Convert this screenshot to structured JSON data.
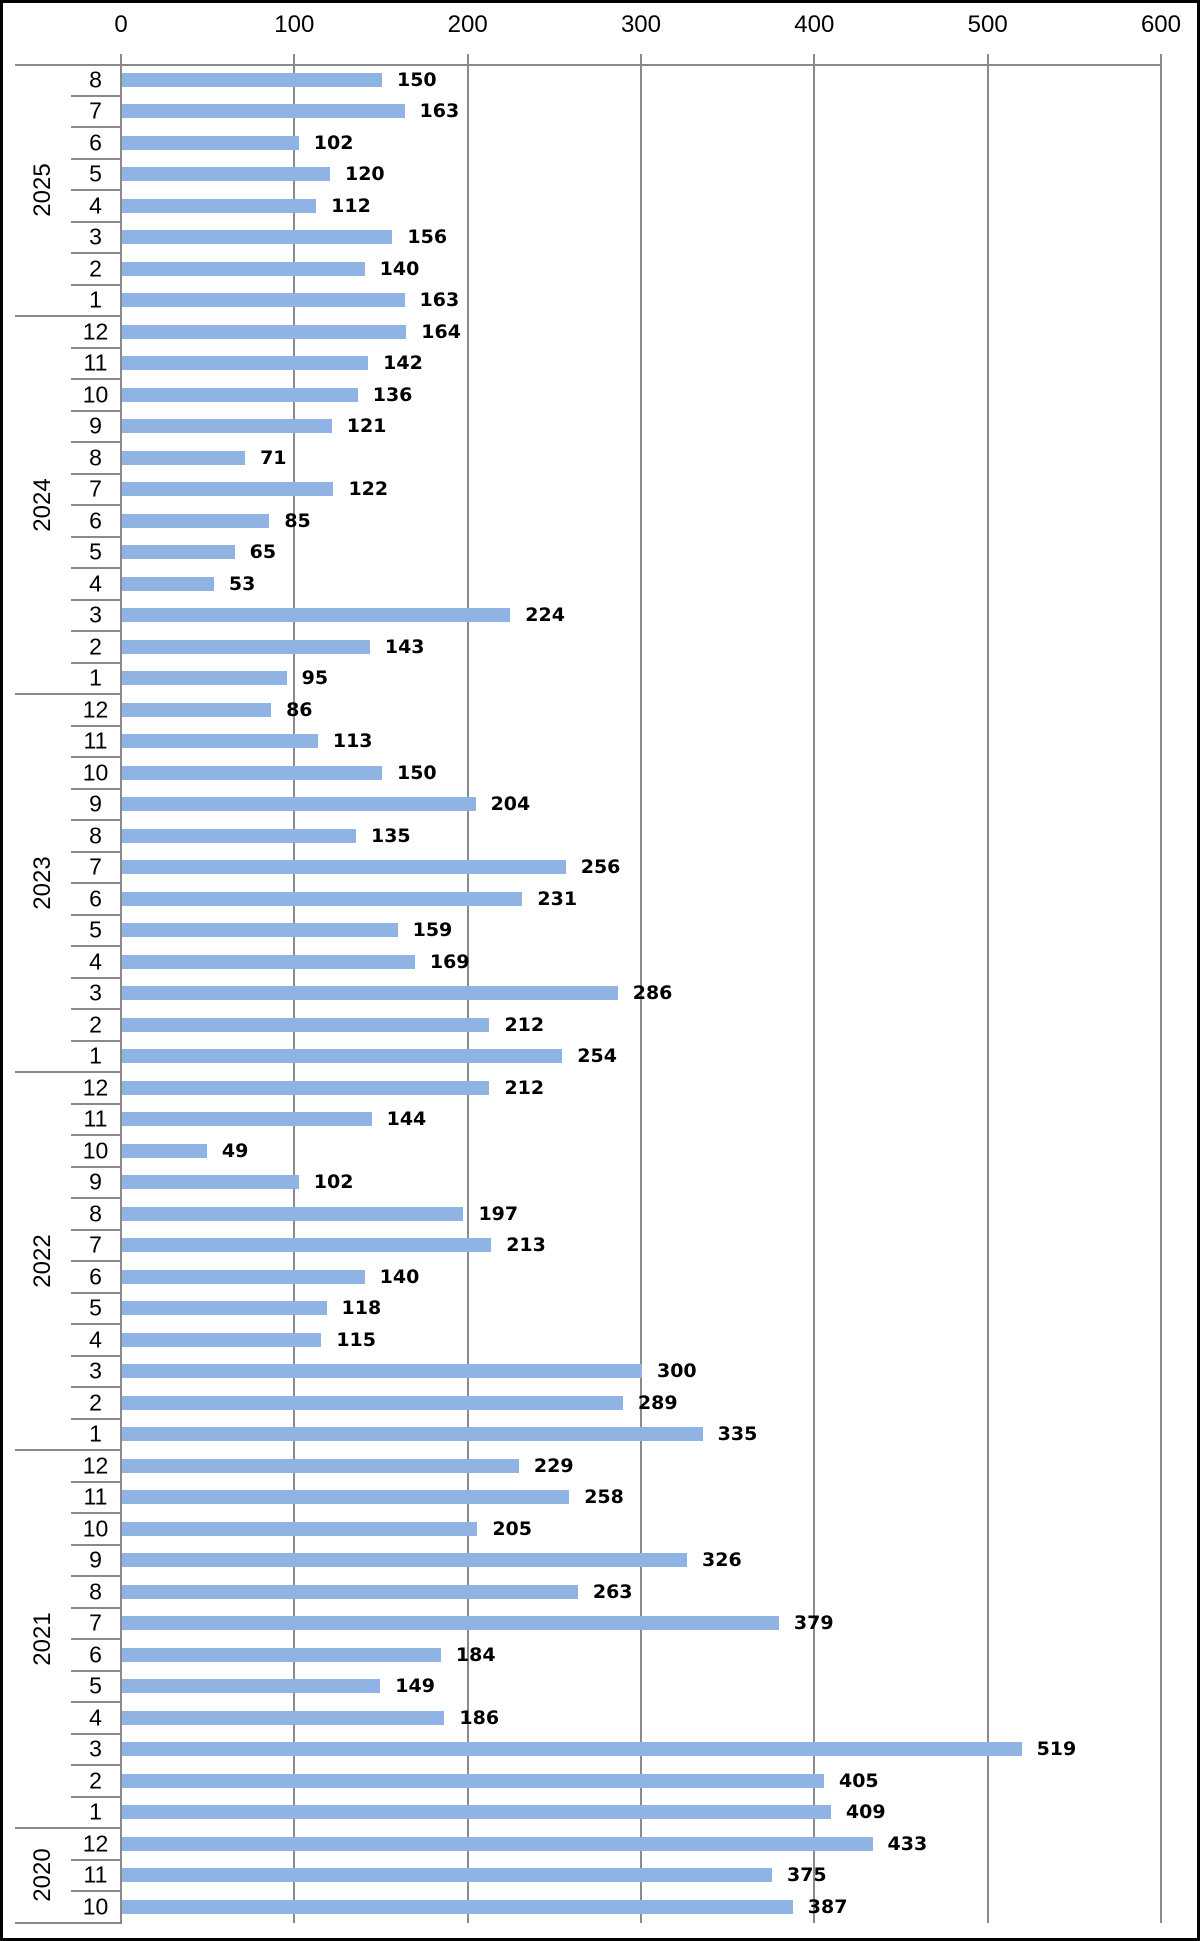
{
  "chart_data": {
    "type": "bar",
    "orientation": "horizontal",
    "title": "",
    "value_axis": {
      "position": "top",
      "min": 0,
      "max": 600,
      "tick_interval": 100,
      "ticks": [
        "0",
        "100",
        "200",
        "300",
        "400",
        "500",
        "600"
      ],
      "gridlines": true
    },
    "category_axis": {
      "levels": [
        "year",
        "month"
      ],
      "order": "top-to-bottom"
    },
    "colors": {
      "bar": "#8FB3E2",
      "lines": "#8a8a8a",
      "text": "#000000",
      "background": "#ffffff",
      "frame": "#000000"
    },
    "groups": [
      {
        "year": "2025",
        "months": [
          {
            "month": "8",
            "value": 150
          },
          {
            "month": "7",
            "value": 163
          },
          {
            "month": "6",
            "value": 102
          },
          {
            "month": "5",
            "value": 120
          },
          {
            "month": "4",
            "value": 112
          },
          {
            "month": "3",
            "value": 156
          },
          {
            "month": "2",
            "value": 140
          },
          {
            "month": "1",
            "value": 163
          }
        ]
      },
      {
        "year": "2024",
        "months": [
          {
            "month": "12",
            "value": 164
          },
          {
            "month": "11",
            "value": 142
          },
          {
            "month": "10",
            "value": 136
          },
          {
            "month": "9",
            "value": 121
          },
          {
            "month": "8",
            "value": 71
          },
          {
            "month": "7",
            "value": 122
          },
          {
            "month": "6",
            "value": 85
          },
          {
            "month": "5",
            "value": 65
          },
          {
            "month": "4",
            "value": 53
          },
          {
            "month": "3",
            "value": 224
          },
          {
            "month": "2",
            "value": 143
          },
          {
            "month": "1",
            "value": 95
          }
        ]
      },
      {
        "year": "2023",
        "months": [
          {
            "month": "12",
            "value": 86
          },
          {
            "month": "11",
            "value": 113
          },
          {
            "month": "10",
            "value": 150
          },
          {
            "month": "9",
            "value": 204
          },
          {
            "month": "8",
            "value": 135
          },
          {
            "month": "7",
            "value": 256
          },
          {
            "month": "6",
            "value": 231
          },
          {
            "month": "5",
            "value": 159
          },
          {
            "month": "4",
            "value": 169
          },
          {
            "month": "3",
            "value": 286
          },
          {
            "month": "2",
            "value": 212
          },
          {
            "month": "1",
            "value": 254
          }
        ]
      },
      {
        "year": "2022",
        "months": [
          {
            "month": "12",
            "value": 212
          },
          {
            "month": "11",
            "value": 144
          },
          {
            "month": "10",
            "value": 49
          },
          {
            "month": "9",
            "value": 102
          },
          {
            "month": "8",
            "value": 197
          },
          {
            "month": "7",
            "value": 213
          },
          {
            "month": "6",
            "value": 140
          },
          {
            "month": "5",
            "value": 118
          },
          {
            "month": "4",
            "value": 115
          },
          {
            "month": "3",
            "value": 300
          },
          {
            "month": "2",
            "value": 289
          },
          {
            "month": "1",
            "value": 335
          }
        ]
      },
      {
        "year": "2021",
        "months": [
          {
            "month": "12",
            "value": 229
          },
          {
            "month": "11",
            "value": 258
          },
          {
            "month": "10",
            "value": 205
          },
          {
            "month": "9",
            "value": 326
          },
          {
            "month": "8",
            "value": 263
          },
          {
            "month": "7",
            "value": 379
          },
          {
            "month": "6",
            "value": 184
          },
          {
            "month": "5",
            "value": 149
          },
          {
            "month": "4",
            "value": 186
          },
          {
            "month": "3",
            "value": 519
          },
          {
            "month": "2",
            "value": 405
          },
          {
            "month": "1",
            "value": 409
          }
        ]
      },
      {
        "year": "2020",
        "months": [
          {
            "month": "12",
            "value": 433
          },
          {
            "month": "11",
            "value": 375
          },
          {
            "month": "10",
            "value": 387
          }
        ]
      }
    ]
  }
}
